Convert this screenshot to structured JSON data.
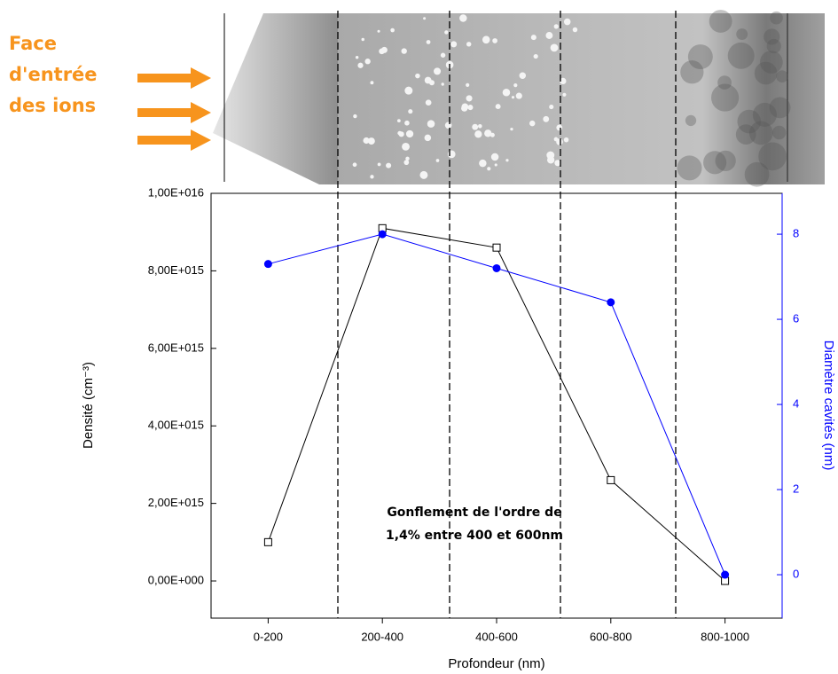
{
  "chart_data": {
    "type": "line",
    "side_label": [
      "Face",
      "d'entrée",
      "des ions"
    ],
    "annotation": [
      "Gonflement de l'ordre de",
      "1,4% entre 400 et 600nm"
    ],
    "xlabel": "Profondeur (nm)",
    "ylabel": "Densité (cm⁻³)",
    "y2label": "Diamètre cavités (nm)",
    "categories": [
      "0-200",
      "200-400",
      "400-600",
      "600-800",
      "800-1000"
    ],
    "ylim": [
      -960000000000000.0,
      1e+16
    ],
    "yticks": [
      {
        "value": 0,
        "label": "0,00E+000"
      },
      {
        "value": 2000000000000000.0,
        "label": "2,00E+015"
      },
      {
        "value": 4000000000000000.0,
        "label": "4,00E+015"
      },
      {
        "value": 6000000000000000.0,
        "label": "6,00E+015"
      },
      {
        "value": 8000000000000000.0,
        "label": "8,00E+015"
      },
      {
        "value": 1e+16,
        "label": "1,00E+016"
      }
    ],
    "y2lim": [
      -1.02,
      8.96
    ],
    "y2ticks": [
      0,
      2,
      4,
      6,
      8
    ],
    "y2color": "#0000ff",
    "series": [
      {
        "color": "#000000",
        "marker": "open-square",
        "values": [
          1000000000000000.0,
          9100000000000000.0,
          8600000000000000.0,
          2600000000000000.0,
          0
        ]
      },
      {
        "color": "#0000ff",
        "marker": "filled-circle",
        "axis": "y2",
        "values": [
          7.3,
          8.0,
          7.2,
          6.4,
          0
        ]
      }
    ]
  }
}
